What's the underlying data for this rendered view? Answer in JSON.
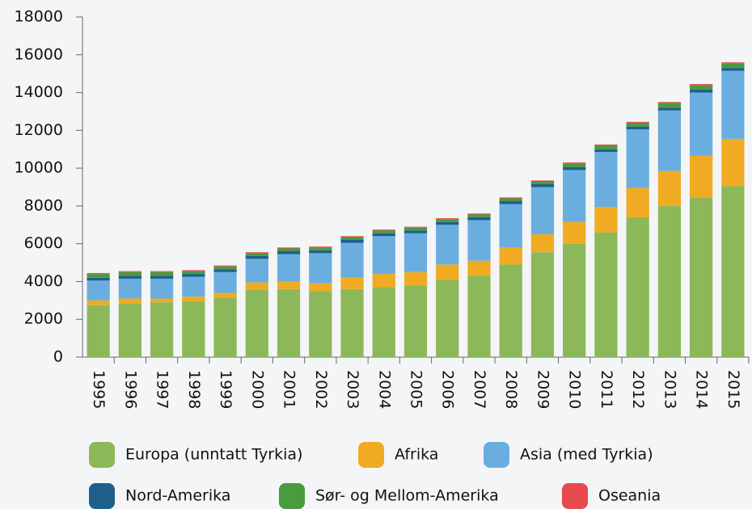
{
  "chart_data": {
    "type": "stacked_bar",
    "categories": [
      "1995",
      "1996",
      "1997",
      "1998",
      "1999",
      "2000",
      "2001",
      "2002",
      "2003",
      "2004",
      "2005",
      "2006",
      "2007",
      "2008",
      "2009",
      "2010",
      "2011",
      "2012",
      "2013",
      "2014",
      "2015"
    ],
    "series": [
      {
        "name": "Europa (unntatt Tyrkia)",
        "color": "#8db85a",
        "values": [
          2750,
          2850,
          2900,
          2950,
          3150,
          3550,
          3600,
          3500,
          3600,
          3700,
          3800,
          4100,
          4300,
          4900,
          5550,
          6000,
          6600,
          7400,
          8000,
          8450,
          9050
        ]
      },
      {
        "name": "Afrika",
        "color": "#f0ab22",
        "values": [
          250,
          250,
          200,
          250,
          250,
          400,
          400,
          400,
          600,
          700,
          700,
          800,
          800,
          900,
          950,
          1150,
          1350,
          1550,
          1850,
          2200,
          2500
        ]
      },
      {
        "name": "Asia (med Tyrkia)",
        "color": "#6aaee0",
        "values": [
          1050,
          1050,
          1050,
          1050,
          1100,
          1250,
          1450,
          1600,
          1850,
          2000,
          2050,
          2100,
          2150,
          2300,
          2500,
          2750,
          2900,
          3100,
          3200,
          3350,
          3600
        ]
      },
      {
        "name": "Nord-Amerika",
        "color": "#1f5f8b",
        "values": [
          150,
          150,
          150,
          150,
          150,
          150,
          150,
          150,
          150,
          150,
          150,
          150,
          150,
          150,
          150,
          150,
          150,
          150,
          150,
          150,
          150
        ]
      },
      {
        "name": "Sør- og Mellom-Amerika",
        "color": "#4a9a3e",
        "values": [
          200,
          200,
          200,
          150,
          150,
          150,
          150,
          150,
          150,
          150,
          150,
          150,
          150,
          150,
          150,
          200,
          200,
          200,
          250,
          250,
          250
        ]
      },
      {
        "name": "Oseania",
        "color": "#e84a4f",
        "values": [
          50,
          50,
          50,
          50,
          50,
          50,
          50,
          50,
          50,
          50,
          50,
          50,
          50,
          50,
          50,
          50,
          50,
          50,
          50,
          50,
          50
        ]
      }
    ],
    "ylim": [
      0,
      18000
    ],
    "yticks": [
      0,
      2000,
      4000,
      6000,
      8000,
      10000,
      12000,
      14000,
      16000,
      18000
    ]
  }
}
